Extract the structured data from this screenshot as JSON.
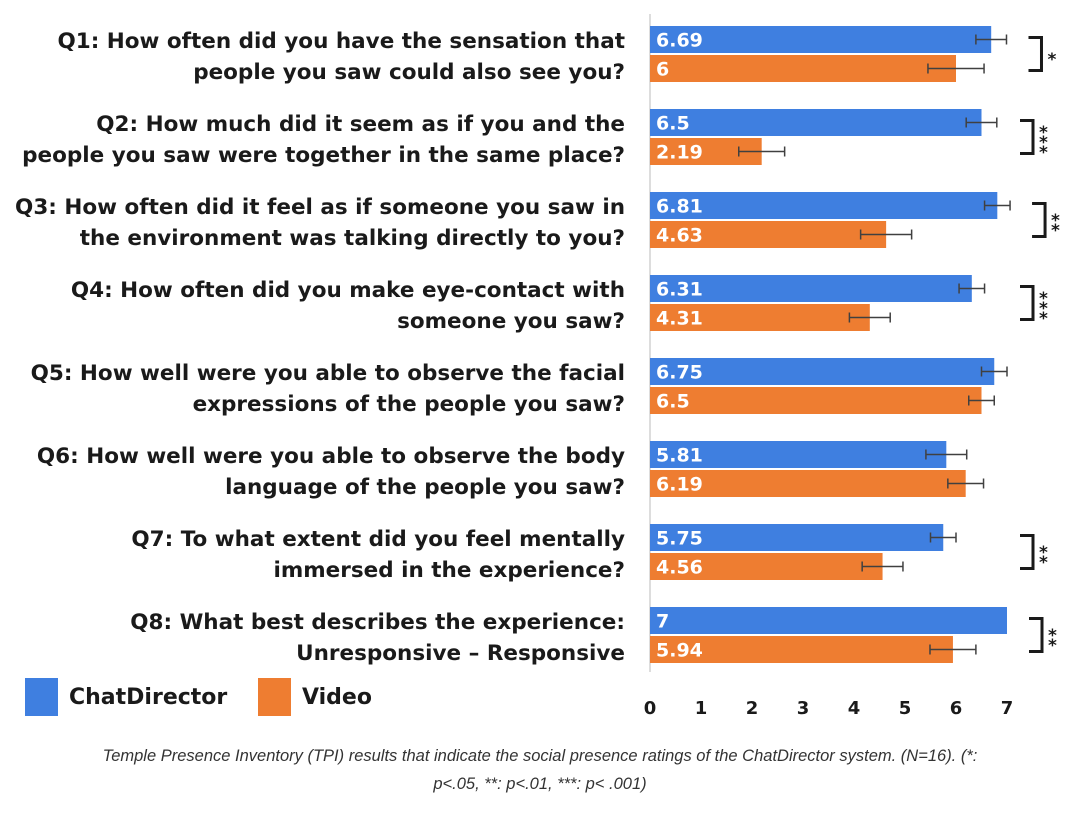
{
  "chart_data": {
    "type": "bar",
    "orientation": "horizontal",
    "categories": [
      [
        "Q1: How often did you have the sensation that",
        "people you saw could also see you?"
      ],
      [
        "Q2: How much did it seem as if you and the",
        "people you saw were together in the same place?"
      ],
      [
        "Q3: How often did it feel as if someone you saw in",
        "the environment was talking directly to you?"
      ],
      [
        "Q4: How often did you make eye-contact with",
        "someone you saw?"
      ],
      [
        "Q5: How well were you able to observe the facial",
        "expressions of the people you saw?"
      ],
      [
        "Q6: How well were you able to observe the body",
        "language of the people you saw?"
      ],
      [
        "Q7: To what extent did you feel mentally",
        "immersed in the experience?"
      ],
      [
        "Q8: What best describes the experience:",
        "Unresponsive – Responsive"
      ]
    ],
    "series": [
      {
        "name": "ChatDirector",
        "color": "#3f7fe0",
        "values": [
          6.69,
          6.5,
          6.81,
          6.31,
          6.75,
          5.81,
          5.75,
          7
        ],
        "value_labels": [
          "6.69",
          "6.5",
          "6.81",
          "6.31",
          "6.75",
          "5.81",
          "5.75",
          "7"
        ],
        "error": [
          0.3,
          0.3,
          0.25,
          0.25,
          0.25,
          0.4,
          0.25,
          0
        ]
      },
      {
        "name": "Video",
        "color": "#ee7d31",
        "values": [
          6,
          2.19,
          4.63,
          4.31,
          6.5,
          6.19,
          4.56,
          5.94
        ],
        "value_labels": [
          "6",
          "2.19",
          "4.63",
          "4.31",
          "6.5",
          "6.19",
          "4.56",
          "5.94"
        ],
        "error": [
          0.55,
          0.45,
          0.5,
          0.4,
          0.25,
          0.35,
          0.4,
          0.45
        ]
      }
    ],
    "significance": [
      "*",
      "***",
      "**",
      "***",
      "",
      "",
      "**",
      "**"
    ],
    "xlim": [
      0,
      7
    ],
    "xticks": [
      "0",
      "1",
      "2",
      "3",
      "4",
      "5",
      "6",
      "7"
    ],
    "legend_placement": "bottom-left",
    "grid": false
  },
  "caption": {
    "line1": "Temple Presence Inventory (TPI) results that indicate the social presence ratings of the ChatDirector system. (N=16). (*:",
    "line2": "p<.05, **: p<.01, ***: p< .001)"
  }
}
